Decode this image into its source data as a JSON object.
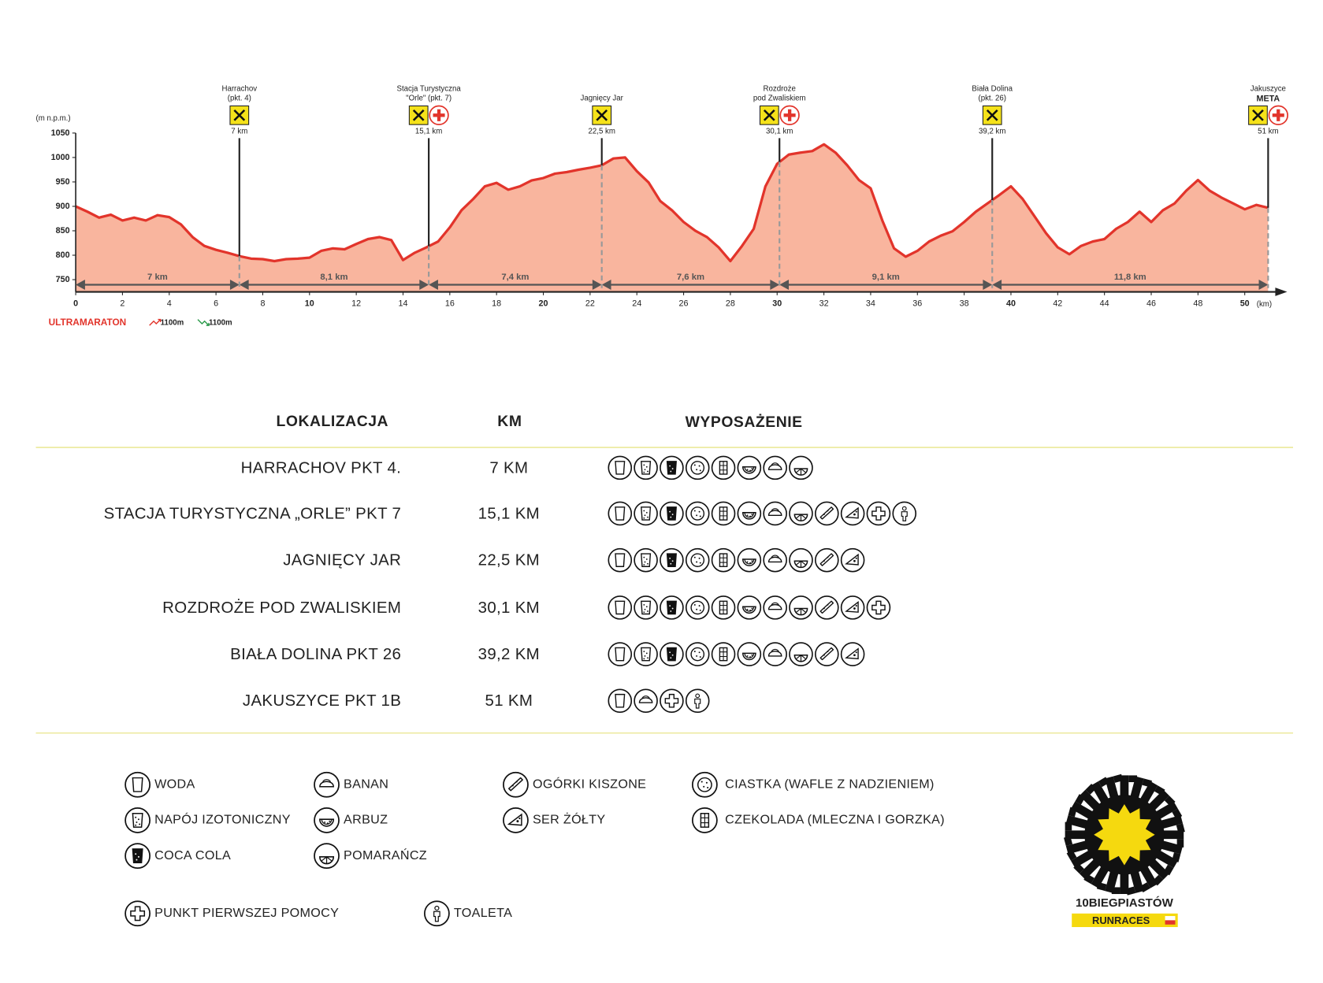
{
  "chart_data": {
    "type": "area",
    "y_label": "(m n.p.m.)",
    "x_unit": "(km)",
    "xlim": [
      0,
      51
    ],
    "ylim": [
      725,
      1050
    ],
    "xticks": [
      0,
      2,
      4,
      6,
      8,
      10,
      12,
      14,
      16,
      18,
      20,
      22,
      24,
      26,
      28,
      30,
      32,
      34,
      36,
      38,
      40,
      42,
      44,
      46,
      48,
      50
    ],
    "yticks": [
      750,
      800,
      850,
      900,
      950,
      1000,
      1050
    ],
    "line_color": "#e2342b",
    "fill_color": "#f9b59e",
    "x": [
      0,
      0.5,
      1,
      1.5,
      2,
      2.5,
      3,
      3.5,
      4,
      4.5,
      5,
      5.5,
      6,
      6.5,
      7,
      7.5,
      8,
      8.5,
      9,
      9.5,
      10,
      10.5,
      11,
      11.5,
      12,
      12.5,
      13,
      13.5,
      14,
      14.5,
      15,
      15.5,
      16,
      16.5,
      17,
      17.5,
      18,
      18.5,
      19,
      19.5,
      20,
      20.5,
      21,
      21.5,
      22,
      22.5,
      23,
      23.5,
      24,
      24.5,
      25,
      25.5,
      26,
      26.5,
      27,
      27.5,
      28,
      28.5,
      29,
      29.5,
      30,
      30.5,
      31,
      31.5,
      32,
      32.5,
      33,
      33.5,
      34,
      34.5,
      35,
      35.5,
      36,
      36.5,
      37,
      37.5,
      38,
      38.5,
      39,
      39.5,
      40,
      40.5,
      41,
      41.5,
      42,
      42.5,
      43,
      43.5,
      44,
      44.5,
      45,
      45.5,
      46,
      46.5,
      47,
      47.5,
      48,
      48.5,
      49,
      49.5,
      50,
      50.5,
      51
    ],
    "values": [
      900,
      889,
      877,
      883,
      871,
      877,
      871,
      882,
      878,
      863,
      837,
      819,
      811,
      805,
      798,
      793,
      792,
      788,
      792,
      793,
      795,
      809,
      814,
      812,
      823,
      833,
      837,
      831,
      790,
      805,
      816,
      828,
      857,
      892,
      915,
      941,
      948,
      934,
      941,
      953,
      958,
      967,
      970,
      975,
      979,
      984,
      998,
      1000,
      972,
      949,
      911,
      892,
      868,
      850,
      837,
      816,
      788,
      819,
      854,
      941,
      987,
      1006,
      1010,
      1013,
      1027,
      1010,
      984,
      954,
      937,
      871,
      814,
      797,
      809,
      828,
      840,
      849,
      868,
      889,
      906,
      923,
      941,
      915,
      880,
      845,
      816,
      802,
      819,
      828,
      833,
      854,
      868,
      889,
      868,
      892,
      906,
      932,
      954,
      932,
      918,
      906,
      894,
      903,
      897
    ],
    "waypoints": [
      {
        "lines": [
          "Harrachov",
          "(pkt. 4)"
        ],
        "km": 7,
        "km_label": "7 km",
        "first_aid": false
      },
      {
        "lines": [
          "Stacja Turystyczna",
          "\"Orle\" (pkt. 7)"
        ],
        "km": 15.1,
        "km_label": "15,1 km",
        "first_aid": true
      },
      {
        "lines": [
          "Jagnięcy Jar"
        ],
        "km": 22.5,
        "km_label": "22,5 km",
        "first_aid": false
      },
      {
        "lines": [
          "Rozdroże",
          "pod Zwaliskiem"
        ],
        "km": 30.1,
        "km_label": "30,1 km",
        "first_aid": true
      },
      {
        "lines": [
          "Biała Dolina",
          "(pkt. 26)"
        ],
        "km": 39.2,
        "km_label": "39,2 km",
        "first_aid": false
      },
      {
        "lines": [
          "Jakuszyce"
        ],
        "finish": "META",
        "km": 51,
        "km_label": "51 km",
        "first_aid": true
      }
    ],
    "segments": [
      7,
      8.1,
      7.4,
      7.6,
      9.1,
      11.8
    ],
    "segment_labels": [
      "7 km",
      "8,1 km",
      "7,4 km",
      "7,6 km",
      "9,1 km",
      "11,8 km"
    ],
    "race": "ULTRAMARATON",
    "ascent": "1100m",
    "descent": "1100m"
  },
  "table": {
    "headers": [
      "LOKALIZACJA",
      "KM",
      "WYPOSAŻENIE"
    ],
    "rows": [
      {
        "location": "HARRACHOV PKT 4.",
        "km": "7 KM",
        "items": [
          "WODA",
          "NAPÓJ IZOTONICZNY",
          "COCA COLA",
          "CIASTKA (WAFLE Z NADZIENIEM)",
          "CZEKOLADA (MLECZNA I GORZKA)",
          "ARBUZ",
          "BANAN",
          "POMARAŃCZ"
        ]
      },
      {
        "location": "STACJA TURYSTYCZNA „ORLE” PKT 7",
        "km": "15,1 KM",
        "items": [
          "WODA",
          "NAPÓJ IZOTONICZNY",
          "COCA COLA",
          "CIASTKA (WAFLE Z NADZIENIEM)",
          "CZEKOLADA (MLECZNA I GORZKA)",
          "ARBUZ",
          "BANAN",
          "POMARAŃCZ",
          "OGÓRKI KISZONE",
          "SER ŻÓŁTY",
          "PUNKT PIERWSZEJ POMOCY",
          "TOALETA"
        ]
      },
      {
        "location": "JAGNIĘCY JAR",
        "km": "22,5 KM",
        "items": [
          "WODA",
          "NAPÓJ IZOTONICZNY",
          "COCA COLA",
          "CIASTKA (WAFLE Z NADZIENIEM)",
          "CZEKOLADA (MLECZNA I GORZKA)",
          "ARBUZ",
          "BANAN",
          "POMARAŃCZ",
          "OGÓRKI KISZONE",
          "SER ŻÓŁTY"
        ]
      },
      {
        "location": "ROZDROŻE POD ZWALISKIEM",
        "km": "30,1 KM",
        "items": [
          "WODA",
          "NAPÓJ IZOTONICZNY",
          "COCA COLA",
          "CIASTKA (WAFLE Z NADZIENIEM)",
          "CZEKOLADA (MLECZNA I GORZKA)",
          "ARBUZ",
          "BANAN",
          "POMARAŃCZ",
          "OGÓRKI KISZONE",
          "SER ŻÓŁTY",
          "PUNKT PIERWSZEJ POMOCY"
        ]
      },
      {
        "location": "BIAŁA DOLINA PKT 26",
        "km": "39,2 KM",
        "items": [
          "WODA",
          "NAPÓJ IZOTONICZNY",
          "COCA COLA",
          "CIASTKA (WAFLE Z NADZIENIEM)",
          "CZEKOLADA (MLECZNA I GORZKA)",
          "ARBUZ",
          "BANAN",
          "POMARAŃCZ",
          "OGÓRKI KISZONE",
          "SER ŻÓŁTY"
        ]
      },
      {
        "location": "JAKUSZYCE PKT 1B",
        "km": "51 KM",
        "items": [
          "WODA",
          "BANAN",
          "PUNKT PIERWSZEJ POMOCY",
          "TOALETA"
        ]
      }
    ]
  },
  "legend": [
    "WODA",
    "NAPÓJ IZOTONICZNY",
    "COCA COLA",
    "BANAN",
    "ARBUZ",
    "POMARAŃCZ",
    "OGÓRKI KISZONE",
    "SER ŻÓŁTY",
    "CIASTKA (WAFLE Z NADZIENIEM)",
    "CZEKOLADA (MLECZNA I GORZKA)",
    "PUNKT PIERWSZEJ POMOCY",
    "TOALETA"
  ],
  "logo": {
    "name": "10BIEGPIASTÓW",
    "sub": "RUNRACES"
  }
}
